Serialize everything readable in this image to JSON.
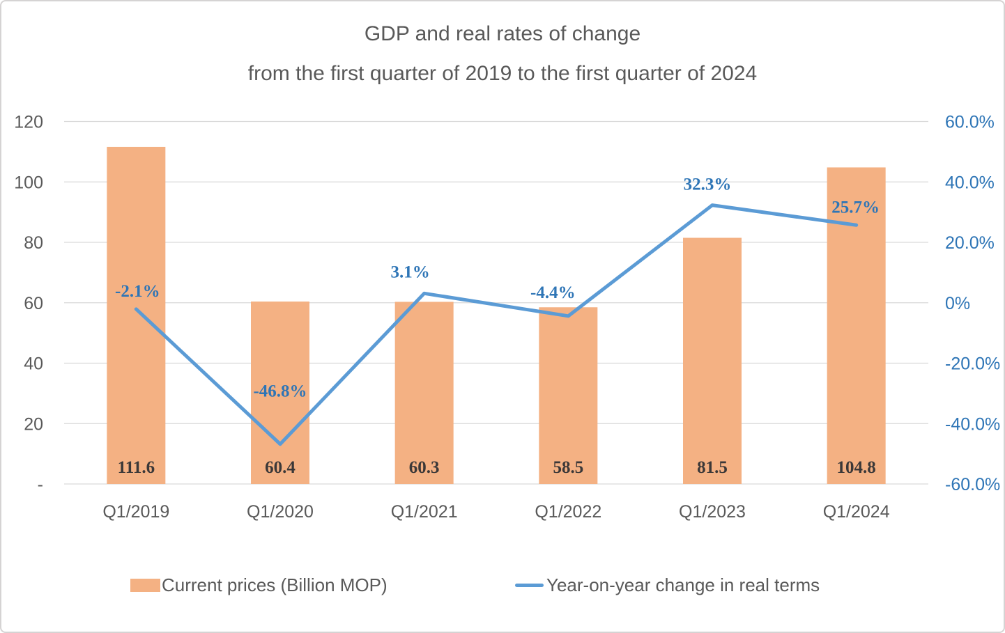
{
  "title": "GDP and real rates of change",
  "subtitle": "from the first quarter of 2019 to the first quarter of 2024",
  "legend": {
    "bars_label": "Current prices (Billion MOP)",
    "line_label": "Year-on-year change in real terms"
  },
  "colors": {
    "bar": "#F4B183",
    "line": "#5B9BD5",
    "axis_text": "#595959",
    "right_axis_text": "#2E75B6",
    "bar_label_text": "#3B3838",
    "line_label_text": "#2E75B6",
    "gridline": "#D9D9D9",
    "border": "#D5D3D3"
  },
  "chart_data": {
    "type": "bar+line combo",
    "title": "GDP and real rates of change",
    "subtitle": "from the first quarter of 2019 to the first quarter of 2024",
    "categories": [
      "Q1/2019",
      "Q1/2020",
      "Q1/2021",
      "Q1/2022",
      "Q1/2023",
      "Q1/2024"
    ],
    "series": [
      {
        "name": "Current prices (Billion MOP)",
        "type": "bar",
        "axis": "left",
        "values": [
          111.6,
          60.4,
          60.3,
          58.5,
          81.5,
          104.8
        ],
        "labels": [
          "111.6",
          "60.4",
          "60.3",
          "58.5",
          "81.5",
          "104.8"
        ],
        "color": "#F4B183"
      },
      {
        "name": "Year-on-year change in real terms",
        "type": "line",
        "axis": "right",
        "values": [
          -2.1,
          -46.8,
          3.1,
          -4.4,
          32.3,
          25.7
        ],
        "labels": [
          "-2.1%",
          "-46.8%",
          "3.1%",
          "-4.4%",
          "32.3%",
          "25.7%"
        ],
        "color": "#5B9BD5"
      }
    ],
    "left_axis": {
      "range": [
        0,
        120
      ],
      "tick_values": [
        120,
        100,
        80,
        60,
        40,
        20,
        0
      ],
      "tick_labels": [
        "120",
        "100",
        "80",
        "60",
        "40",
        "20",
        "-"
      ]
    },
    "right_axis": {
      "range": [
        -60,
        60
      ],
      "tick_values": [
        60,
        40,
        20,
        0,
        -20,
        -40,
        -60
      ],
      "tick_labels": [
        "60.0%",
        "40.0%",
        "20.0%",
        "0%",
        "-20.0%",
        "-40.0%",
        "-60.0%"
      ]
    },
    "grid": true,
    "legend_position": "bottom"
  }
}
